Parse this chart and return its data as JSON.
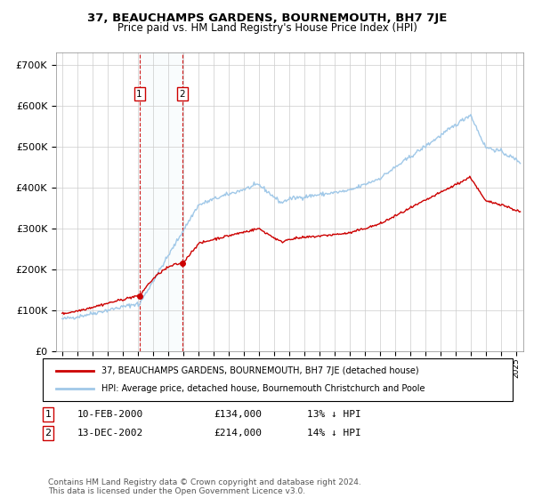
{
  "title": "37, BEAUCHAMPS GARDENS, BOURNEMOUTH, BH7 7JE",
  "subtitle": "Price paid vs. HM Land Registry's House Price Index (HPI)",
  "sale1_date": "10-FEB-2000",
  "sale1_price": 134000,
  "sale1_label": "13% ↓ HPI",
  "sale1_x": 2000.11,
  "sale2_date": "13-DEC-2002",
  "sale2_price": 214000,
  "sale2_label": "14% ↓ HPI",
  "sale2_x": 2002.95,
  "hpi_color": "#a0c8e8",
  "price_color": "#cc0000",
  "legend_text_1": "37, BEAUCHAMPS GARDENS, BOURNEMOUTH, BH7 7JE (detached house)",
  "legend_text_2": "HPI: Average price, detached house, Bournemouth Christchurch and Poole",
  "footer": "Contains HM Land Registry data © Crown copyright and database right 2024.\nThis data is licensed under the Open Government Licence v3.0.",
  "yticks": [
    0,
    100000,
    200000,
    300000,
    400000,
    500000,
    600000,
    700000
  ],
  "ylim": [
    0,
    730000
  ],
  "xlim_start": 1994.6,
  "xlim_end": 2025.5,
  "bg_color": "#ffffff",
  "grid_color": "#cccccc"
}
